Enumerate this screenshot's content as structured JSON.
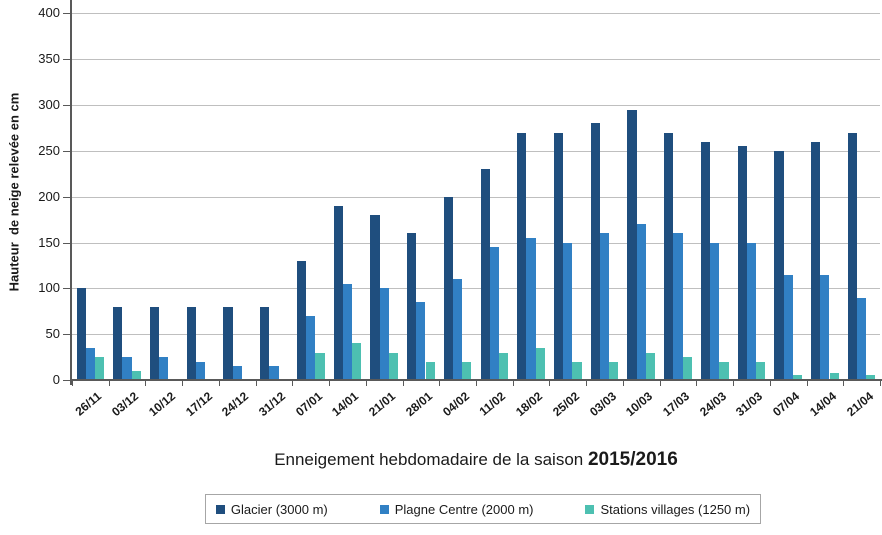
{
  "title": {
    "prefix": "Enneigement hebdomadaire de la saison ",
    "season": "2015/2016"
  },
  "y_axis": {
    "label": "Hauteur  de neige relevée en cm",
    "ticks": [
      0,
      50,
      100,
      150,
      200,
      250,
      300,
      350,
      400
    ]
  },
  "colors": {
    "glacier": "#1F4E7E",
    "plagne_centre": "#3180C4",
    "stations_villages": "#4DC0B1",
    "gridline": "#BFBFBF",
    "axis": "#595959"
  },
  "chart_data": {
    "type": "bar",
    "title": "Enneigement hebdomadaire de la saison 2015/2016",
    "ylabel": "Hauteur de neige relevée en cm",
    "ylim": [
      0,
      400
    ],
    "grid": true,
    "legend_position": "bottom",
    "categories": [
      "26/11",
      "03/12",
      "10/12",
      "17/12",
      "24/12",
      "31/12",
      "07/01",
      "14/01",
      "21/01",
      "28/01",
      "04/02",
      "11/02",
      "18/02",
      "25/02",
      "03/03",
      "10/03",
      "17/03",
      "24/03",
      "31/03",
      "07/04",
      "14/04",
      "21/04"
    ],
    "series": [
      {
        "name": "Glacier (3000 m)",
        "color": "#1F4E7E",
        "values": [
          100,
          80,
          80,
          80,
          80,
          80,
          130,
          190,
          180,
          160,
          200,
          230,
          270,
          270,
          280,
          295,
          270,
          260,
          255,
          250,
          260,
          270
        ]
      },
      {
        "name": "Plagne Centre (2000 m)",
        "color": "#3180C4",
        "values": [
          35,
          25,
          25,
          20,
          15,
          15,
          70,
          105,
          100,
          85,
          110,
          145,
          155,
          150,
          160,
          170,
          160,
          150,
          150,
          115,
          115,
          90
        ]
      },
      {
        "name": "Stations villages (1250 m)",
        "color": "#4DC0B1",
        "values": [
          25,
          10,
          0,
          0,
          0,
          0,
          30,
          40,
          30,
          20,
          20,
          30,
          35,
          20,
          20,
          30,
          25,
          20,
          20,
          5,
          8,
          5
        ]
      }
    ]
  }
}
